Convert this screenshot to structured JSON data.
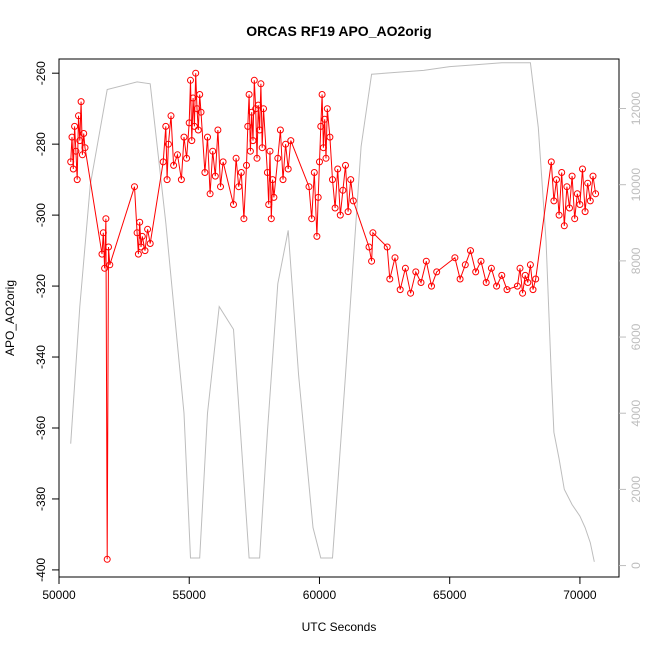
{
  "chart_data": {
    "type": "line",
    "title": "ORCAS RF19 APO_AO2orig",
    "xlabel": "UTC Seconds",
    "ylabel": "APO_AO2orig",
    "y2label": "",
    "xlim": [
      50000,
      71500
    ],
    "ylim": [
      -402,
      -256
    ],
    "y2lim": [
      -300,
      13300
    ],
    "x_ticks": [
      50000,
      55000,
      60000,
      65000,
      70000
    ],
    "y_ticks": [
      -400,
      -380,
      -360,
      -340,
      -320,
      -300,
      -280,
      -260
    ],
    "y2_ticks": [
      0,
      2000,
      4000,
      6000,
      8000,
      10000,
      12000
    ],
    "grid": false,
    "legend": "none",
    "colors": {
      "apo": "#ff0000",
      "altitude": "#bdbdbd",
      "axis": "#000000"
    },
    "series": [
      {
        "axis": "left",
        "style": "line+open-circles",
        "points": [
          [
            50450,
            -285
          ],
          [
            50500,
            -278
          ],
          [
            50550,
            -287
          ],
          [
            50600,
            -275
          ],
          [
            50650,
            -282
          ],
          [
            50700,
            -290
          ],
          [
            50750,
            -272
          ],
          [
            50800,
            -279
          ],
          [
            50850,
            -268
          ],
          [
            50900,
            -283
          ],
          [
            50950,
            -277
          ],
          [
            51000,
            -281
          ],
          [
            51650,
            -311
          ],
          [
            51700,
            -305
          ],
          [
            51750,
            -315
          ],
          [
            51800,
            -301
          ],
          [
            51850,
            -397
          ],
          [
            51900,
            -309
          ],
          [
            51950,
            -314
          ],
          [
            52900,
            -292
          ],
          [
            53000,
            -305
          ],
          [
            53050,
            -311
          ],
          [
            53100,
            -302
          ],
          [
            53150,
            -309
          ],
          [
            53200,
            -306
          ],
          [
            53300,
            -310
          ],
          [
            53400,
            -304
          ],
          [
            53500,
            -308
          ],
          [
            54000,
            -285
          ],
          [
            54100,
            -275
          ],
          [
            54150,
            -290
          ],
          [
            54200,
            -280
          ],
          [
            54300,
            -272
          ],
          [
            54400,
            -286
          ],
          [
            54550,
            -283
          ],
          [
            54700,
            -290
          ],
          [
            54800,
            -278
          ],
          [
            54900,
            -284
          ],
          [
            55000,
            -274
          ],
          [
            55050,
            -262
          ],
          [
            55100,
            -279
          ],
          [
            55150,
            -267
          ],
          [
            55200,
            -275
          ],
          [
            55250,
            -260
          ],
          [
            55300,
            -270
          ],
          [
            55350,
            -276
          ],
          [
            55400,
            -266
          ],
          [
            55450,
            -271
          ],
          [
            55600,
            -288
          ],
          [
            55700,
            -278
          ],
          [
            55800,
            -294
          ],
          [
            55900,
            -282
          ],
          [
            56000,
            -289
          ],
          [
            56100,
            -276
          ],
          [
            56200,
            -292
          ],
          [
            56300,
            -285
          ],
          [
            56700,
            -297
          ],
          [
            56800,
            -284
          ],
          [
            56900,
            -292
          ],
          [
            57000,
            -288
          ],
          [
            57100,
            -301
          ],
          [
            57200,
            -286
          ],
          [
            57250,
            -275
          ],
          [
            57300,
            -266
          ],
          [
            57350,
            -282
          ],
          [
            57400,
            -271
          ],
          [
            57450,
            -279
          ],
          [
            57500,
            -262
          ],
          [
            57550,
            -270
          ],
          [
            57600,
            -284
          ],
          [
            57650,
            -269
          ],
          [
            57700,
            -276
          ],
          [
            57750,
            -263
          ],
          [
            57800,
            -281
          ],
          [
            57850,
            -270
          ],
          [
            58000,
            -288
          ],
          [
            58050,
            -297
          ],
          [
            58100,
            -282
          ],
          [
            58150,
            -301
          ],
          [
            58200,
            -290
          ],
          [
            58250,
            -295
          ],
          [
            58400,
            -284
          ],
          [
            58500,
            -276
          ],
          [
            58600,
            -290
          ],
          [
            58700,
            -280
          ],
          [
            58800,
            -287
          ],
          [
            58900,
            -279
          ],
          [
            59600,
            -292
          ],
          [
            59700,
            -301
          ],
          [
            59800,
            -288
          ],
          [
            59900,
            -306
          ],
          [
            59950,
            -295
          ],
          [
            60000,
            -285
          ],
          [
            60050,
            -275
          ],
          [
            60100,
            -266
          ],
          [
            60150,
            -281
          ],
          [
            60200,
            -273
          ],
          [
            60250,
            -284
          ],
          [
            60300,
            -270
          ],
          [
            60400,
            -278
          ],
          [
            60500,
            -290
          ],
          [
            60600,
            -298
          ],
          [
            60700,
            -287
          ],
          [
            60800,
            -300
          ],
          [
            60900,
            -293
          ],
          [
            61000,
            -286
          ],
          [
            61100,
            -299
          ],
          [
            61200,
            -290
          ],
          [
            61300,
            -296
          ],
          [
            61900,
            -309
          ],
          [
            62000,
            -313
          ],
          [
            62050,
            -305
          ],
          [
            62600,
            -309
          ],
          [
            62700,
            -318
          ],
          [
            62900,
            -312
          ],
          [
            63100,
            -321
          ],
          [
            63300,
            -315
          ],
          [
            63500,
            -322
          ],
          [
            63700,
            -316
          ],
          [
            63900,
            -319
          ],
          [
            64100,
            -313
          ],
          [
            64300,
            -320
          ],
          [
            64500,
            -316
          ],
          [
            65200,
            -312
          ],
          [
            65400,
            -318
          ],
          [
            65600,
            -314
          ],
          [
            65800,
            -310
          ],
          [
            66000,
            -316
          ],
          [
            66200,
            -313
          ],
          [
            66400,
            -319
          ],
          [
            66600,
            -315
          ],
          [
            66800,
            -320
          ],
          [
            67000,
            -317
          ],
          [
            67200,
            -321
          ],
          [
            67600,
            -320
          ],
          [
            67700,
            -315
          ],
          [
            67800,
            -322
          ],
          [
            67900,
            -317
          ],
          [
            68000,
            -319
          ],
          [
            68100,
            -314
          ],
          [
            68200,
            -321
          ],
          [
            68300,
            -318
          ],
          [
            68900,
            -285
          ],
          [
            69000,
            -296
          ],
          [
            69100,
            -290
          ],
          [
            69200,
            -300
          ],
          [
            69300,
            -288
          ],
          [
            69400,
            -303
          ],
          [
            69500,
            -292
          ],
          [
            69600,
            -298
          ],
          [
            69700,
            -289
          ],
          [
            69800,
            -301
          ],
          [
            69900,
            -294
          ],
          [
            70000,
            -297
          ],
          [
            70100,
            -287
          ],
          [
            70200,
            -299
          ],
          [
            70300,
            -291
          ],
          [
            70400,
            -296
          ],
          [
            70500,
            -289
          ],
          [
            70600,
            -294
          ]
        ]
      },
      {
        "axis": "right",
        "style": "line",
        "points": [
          [
            50450,
            3200
          ],
          [
            50800,
            6800
          ],
          [
            51200,
            10000
          ],
          [
            51850,
            12500
          ],
          [
            53000,
            12700
          ],
          [
            53500,
            12650
          ],
          [
            54100,
            9000
          ],
          [
            54800,
            4000
          ],
          [
            55050,
            200
          ],
          [
            55400,
            200
          ],
          [
            55700,
            4000
          ],
          [
            56150,
            6800
          ],
          [
            56700,
            6200
          ],
          [
            57300,
            200
          ],
          [
            57700,
            200
          ],
          [
            58000,
            3500
          ],
          [
            58400,
            7400
          ],
          [
            58800,
            8800
          ],
          [
            59200,
            5000
          ],
          [
            59750,
            1000
          ],
          [
            60050,
            200
          ],
          [
            60500,
            200
          ],
          [
            61000,
            5000
          ],
          [
            61600,
            11000
          ],
          [
            62000,
            12900
          ],
          [
            63000,
            12950
          ],
          [
            64000,
            13000
          ],
          [
            65000,
            13100
          ],
          [
            66000,
            13150
          ],
          [
            67000,
            13200
          ],
          [
            68100,
            13200
          ],
          [
            68400,
            11500
          ],
          [
            68700,
            8500
          ],
          [
            68900,
            5000
          ],
          [
            69000,
            3500
          ],
          [
            69200,
            2800
          ],
          [
            69400,
            2000
          ],
          [
            69700,
            1600
          ],
          [
            70000,
            1300
          ],
          [
            70200,
            1000
          ],
          [
            70400,
            600
          ],
          [
            70550,
            100
          ]
        ]
      }
    ]
  }
}
